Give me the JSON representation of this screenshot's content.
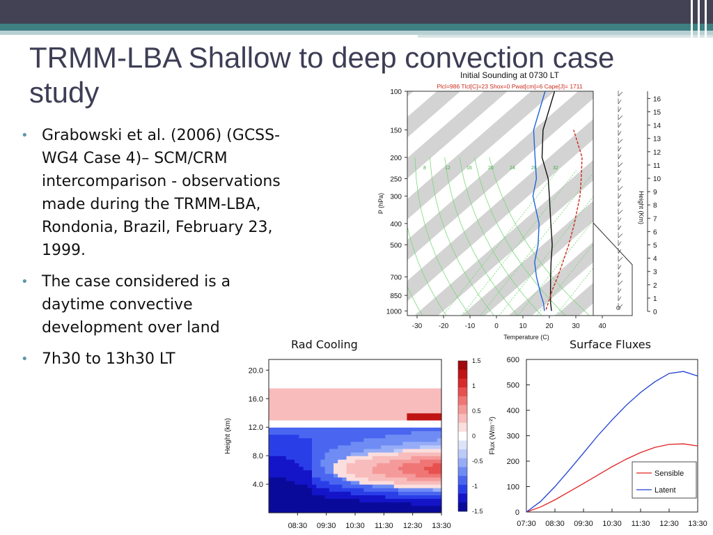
{
  "slide": {
    "title": "TRMM-LBA Shallow to deep convection case study",
    "bullets": [
      "Grabowski et al. (2006) (GCSS-WG4 Case 4)– SCM/CRM intercomparison - observations made during the TRMM-LBA, Rondonia, Brazil, February 23, 1999.",
      "The case considered is a daytime convective development over land",
      "7h30 to 13h30 LT"
    ],
    "labels": {
      "rad_cooling": "Rad Cooling",
      "surface_fluxes": "Surface Fluxes"
    },
    "colors": {
      "title": "#3d3d55",
      "header_dark": "#434254",
      "header_teal": "#3e7f82",
      "bullet": "#5f98a8"
    }
  },
  "chart_data": [
    {
      "type": "line",
      "name": "skewt",
      "title": "Initial Sounding at 0730 LT",
      "subtitle": "Plcl=986 Tlcl[C]=23 Shox=0 Pwat[cm]=6 Cape[J]= 1711",
      "xlabel": "Temperature (C)",
      "ylabel": "P (hPa)",
      "y2label": "Height (Km)",
      "x_ticks": [
        -30,
        -20,
        -10,
        0,
        10,
        20,
        30,
        40
      ],
      "p_ticks": [
        100,
        150,
        200,
        250,
        300,
        400,
        500,
        700,
        850,
        1000
      ],
      "height_ticks": [
        0,
        1,
        2,
        3,
        4,
        5,
        6,
        7,
        8,
        9,
        10,
        11,
        12,
        13,
        14,
        15,
        16
      ],
      "mixing_ratio_labels": [
        "8",
        "12",
        "16",
        "20",
        "24",
        "28",
        "32"
      ],
      "series": [
        {
          "color": "#111111",
          "points": [
            [
              1000,
              26
            ],
            [
              925,
              22
            ],
            [
              850,
              18
            ],
            [
              700,
              9
            ],
            [
              600,
              2
            ],
            [
              500,
              -6
            ],
            [
              400,
              -17
            ],
            [
              300,
              -31
            ],
            [
              250,
              -40
            ],
            [
              200,
              -53
            ],
            [
              150,
              -66
            ],
            [
              100,
              -80
            ]
          ]
        },
        {
          "color": "#1e64d8",
          "points": [
            [
              1000,
              23
            ],
            [
              925,
              19
            ],
            [
              850,
              14
            ],
            [
              700,
              3
            ],
            [
              600,
              -5
            ],
            [
              500,
              -12
            ],
            [
              400,
              -22
            ],
            [
              300,
              -38
            ],
            [
              250,
              -45
            ],
            [
              200,
              -56
            ],
            [
              150,
              -70
            ],
            [
              100,
              -84
            ]
          ]
        },
        {
          "color": "#cc2a1a",
          "dashed": true,
          "points": [
            [
              986,
              23
            ],
            [
              900,
              20
            ],
            [
              800,
              16
            ],
            [
              700,
              12
            ],
            [
              600,
              7
            ],
            [
              500,
              1
            ],
            [
              400,
              -7
            ],
            [
              300,
              -18
            ],
            [
              250,
              -26
            ],
            [
              200,
              -36
            ],
            [
              150,
              -53
            ]
          ]
        }
      ]
    },
    {
      "type": "heatmap",
      "name": "rad-cooling",
      "ylabel": "Height (km)",
      "x_ticks": [
        "08:30",
        "09:30",
        "10:30",
        "11:30",
        "12:30",
        "13:30"
      ],
      "y_ticks": [
        "4.0",
        "8.0",
        "12.0",
        "16.0",
        "20.0"
      ],
      "xlim": [
        7.5,
        13.5
      ],
      "ylim": [
        0,
        21.5
      ],
      "colorbar_ticks": [
        "1.5",
        "1",
        "0.5",
        "0",
        "-0.5",
        "-1",
        "-1.5"
      ],
      "colorbar_range": [
        -1.5,
        1.5
      ],
      "colorbar_colors": [
        "#0a0a9a",
        "#1414c8",
        "#2a3ee8",
        "#4a66f0",
        "#6e8cf4",
        "#96acf6",
        "#bccaf8",
        "#dde4fa",
        "#ffffff",
        "#fbdede",
        "#f8bcbc",
        "#f59a9a",
        "#f07676",
        "#e85050",
        "#d82a2a",
        "#c01414",
        "#a00a0a"
      ]
    },
    {
      "type": "line",
      "name": "surface-fluxes",
      "ylabel": "Flux (Wm⁻²)",
      "x_ticks": [
        "07:30",
        "08:30",
        "09:30",
        "10:30",
        "11:30",
        "12:30",
        "13:30"
      ],
      "y_ticks": [
        0,
        100,
        200,
        300,
        400,
        500,
        600
      ],
      "xlim": [
        7.5,
        13.5
      ],
      "ylim": [
        0,
        600
      ],
      "legend": "bottom-right",
      "series": [
        {
          "name": "Sensible",
          "color": "#e02020",
          "x": [
            7.5,
            8.0,
            8.5,
            9.0,
            9.5,
            10.0,
            10.5,
            11.0,
            11.5,
            12.0,
            12.5,
            13.0,
            13.5
          ],
          "values": [
            0,
            20,
            48,
            80,
            112,
            145,
            178,
            208,
            234,
            254,
            266,
            268,
            260
          ]
        },
        {
          "name": "Latent",
          "color": "#1f3fd0",
          "x": [
            7.5,
            8.0,
            8.5,
            9.0,
            9.5,
            10.0,
            10.5,
            11.0,
            11.5,
            12.0,
            12.5,
            13.0,
            13.5
          ],
          "values": [
            0,
            42,
            100,
            165,
            232,
            300,
            362,
            420,
            470,
            512,
            545,
            553,
            535
          ]
        }
      ]
    }
  ]
}
